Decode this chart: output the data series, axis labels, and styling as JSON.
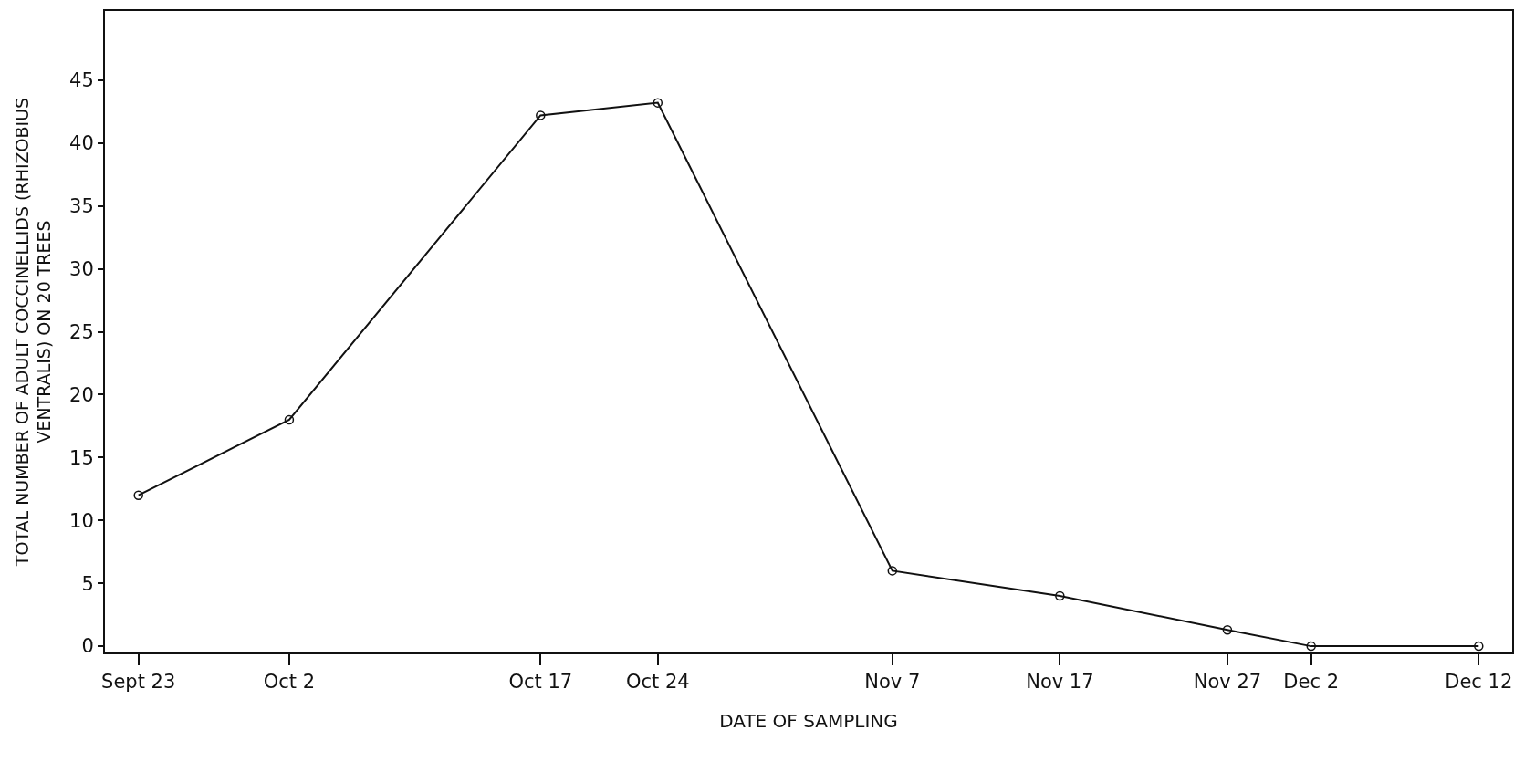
{
  "chart_data": {
    "type": "line",
    "xlabel": "DATE OF SAMPLING",
    "ylabel": "TOTAL NUMBER OF ADULT COCCINELLIDS (RHIZOBIUS\nVENTRALIS) ON 20 TREES",
    "x": [
      "--09-23",
      "--10-02",
      "--10-17",
      "--10-24",
      "--11-07",
      "--11-17",
      "--11-27",
      "--12-02",
      "--12-12"
    ],
    "series": [
      {
        "color": "#111111",
        "values": [
          12,
          18,
          42.2,
          43.2,
          6,
          4,
          1.3,
          0,
          0
        ]
      }
    ],
    "xlim": [
      "--09-21",
      "--12-14"
    ],
    "xticks": [
      {
        "value": "--09-23",
        "label": "Sept 23"
      },
      {
        "value": "--10-02",
        "label": "Oct 2"
      },
      {
        "value": "--10-17",
        "label": "Oct 17"
      },
      {
        "value": "--10-24",
        "label": "Oct 24"
      },
      {
        "value": "--11-07",
        "label": "Nov 7"
      },
      {
        "value": "--11-17",
        "label": "Nov 17"
      },
      {
        "value": "--11-27",
        "label": "Nov 27"
      },
      {
        "value": "--12-02",
        "label": "Dec 2"
      },
      {
        "value": "--12-12",
        "label": "Dec 12"
      }
    ],
    "ylim": [
      -0.5,
      50.5
    ],
    "yticks": [
      0,
      5,
      10,
      15,
      20,
      25,
      30,
      35,
      40,
      45
    ],
    "grid": false,
    "marker": "circle",
    "line_style": "solid"
  }
}
